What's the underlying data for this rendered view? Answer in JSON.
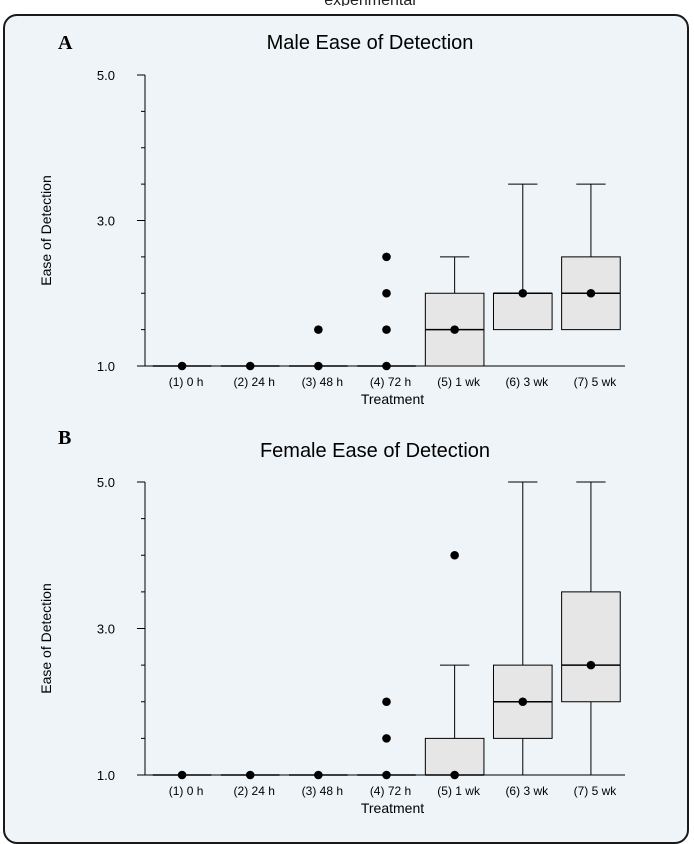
{
  "figure": {
    "top_caption": "experimental"
  },
  "chart_data": [
    {
      "panel": "A",
      "type": "box",
      "title": "Male Ease of Detection",
      "xlabel": "Treatment",
      "ylabel": "Ease of Detection",
      "ylim": [
        1.0,
        5.0
      ],
      "yticks": [
        "1.0",
        "3.0",
        "5.0"
      ],
      "categories": [
        "(1) 0 h",
        "(2) 24 h",
        "(3) 48 h",
        "(4) 72 h",
        "(5) 1 wk",
        "(6) 3 wk",
        "(7) 5 wk"
      ],
      "boxes": [
        {
          "q1": 1.0,
          "median": 1.0,
          "q3": 1.0,
          "whisker_low": 1.0,
          "whisker_high": 1.0,
          "mean": 1.0,
          "outliers": []
        },
        {
          "q1": 1.0,
          "median": 1.0,
          "q3": 1.0,
          "whisker_low": 1.0,
          "whisker_high": 1.0,
          "mean": 1.0,
          "outliers": []
        },
        {
          "q1": 1.0,
          "median": 1.0,
          "q3": 1.0,
          "whisker_low": 1.0,
          "whisker_high": 1.0,
          "mean": 1.0,
          "outliers": [
            1.5
          ]
        },
        {
          "q1": 1.0,
          "median": 1.0,
          "q3": 1.0,
          "whisker_low": 1.0,
          "whisker_high": 1.0,
          "mean": 1.0,
          "outliers": [
            1.5,
            2.0,
            2.5
          ]
        },
        {
          "q1": 1.0,
          "median": 1.5,
          "q3": 2.0,
          "whisker_low": 1.0,
          "whisker_high": 2.5,
          "mean": 1.5,
          "outliers": []
        },
        {
          "q1": 1.5,
          "median": 2.0,
          "q3": 2.0,
          "whisker_low": 1.5,
          "whisker_high": 3.5,
          "mean": 2.0,
          "outliers": []
        },
        {
          "q1": 1.5,
          "median": 2.0,
          "q3": 2.5,
          "whisker_low": 1.5,
          "whisker_high": 3.5,
          "mean": 2.0,
          "outliers": []
        }
      ],
      "grid": false,
      "box_color": "#e6e6e6"
    },
    {
      "panel": "B",
      "type": "box",
      "title": "Female Ease of Detection",
      "xlabel": "Treatment",
      "ylabel": "Ease of Detection",
      "ylim": [
        1.0,
        5.0
      ],
      "yticks": [
        "1.0",
        "3.0",
        "5.0"
      ],
      "categories": [
        "(1) 0 h",
        "(2) 24 h",
        "(3) 48 h",
        "(4) 72 h",
        "(5) 1 wk",
        "(6) 3 wk",
        "(7) 5 wk"
      ],
      "boxes": [
        {
          "q1": 1.0,
          "median": 1.0,
          "q3": 1.0,
          "whisker_low": 1.0,
          "whisker_high": 1.0,
          "mean": 1.0,
          "outliers": []
        },
        {
          "q1": 1.0,
          "median": 1.0,
          "q3": 1.0,
          "whisker_low": 1.0,
          "whisker_high": 1.0,
          "mean": 1.0,
          "outliers": []
        },
        {
          "q1": 1.0,
          "median": 1.0,
          "q3": 1.0,
          "whisker_low": 1.0,
          "whisker_high": 1.0,
          "mean": 1.0,
          "outliers": []
        },
        {
          "q1": 1.0,
          "median": 1.0,
          "q3": 1.0,
          "whisker_low": 1.0,
          "whisker_high": 1.0,
          "mean": 1.0,
          "outliers": [
            1.5,
            2.0
          ]
        },
        {
          "q1": 1.0,
          "median": 1.0,
          "q3": 1.5,
          "whisker_low": 1.0,
          "whisker_high": 2.5,
          "mean": 1.0,
          "outliers": [
            4.0
          ]
        },
        {
          "q1": 1.5,
          "median": 2.0,
          "q3": 2.5,
          "whisker_low": 1.0,
          "whisker_high": 5.0,
          "mean": 2.0,
          "outliers": []
        },
        {
          "q1": 2.0,
          "median": 2.5,
          "q3": 3.5,
          "whisker_low": 1.0,
          "whisker_high": 5.0,
          "mean": 2.5,
          "outliers": []
        }
      ],
      "grid": false,
      "box_color": "#e6e6e6"
    }
  ]
}
